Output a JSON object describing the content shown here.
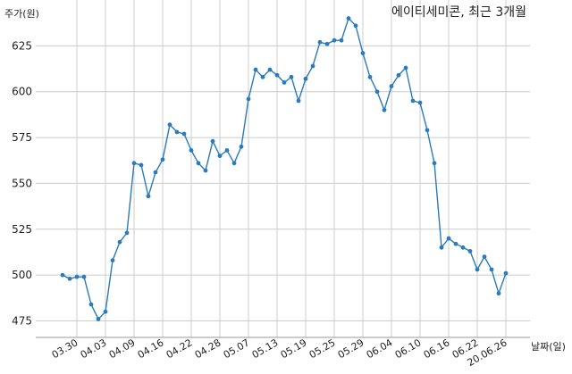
{
  "chart_data": {
    "type": "line",
    "title": "에이티세미콘, 최근 3개월",
    "ylabel": "주가(원)",
    "xlabel": "날짜(일)",
    "ylim": [
      466,
      650
    ],
    "yticks": [
      475,
      500,
      525,
      550,
      575,
      600,
      625
    ],
    "x_tick_labels": [
      "03.30",
      "04.03",
      "04.09",
      "04.16",
      "04.22",
      "04.28",
      "05.07",
      "05.13",
      "05.19",
      "05.25",
      "05.29",
      "06.04",
      "06.10",
      "06.16",
      "06.22",
      "20.06.26"
    ],
    "x_tick_index": [
      2,
      6,
      10,
      14,
      18,
      22,
      26,
      30,
      34,
      38,
      42,
      46,
      50,
      54,
      58,
      62
    ],
    "grid": true,
    "line_color": "#2b7bb9",
    "series": [
      {
        "values": [
          500,
          498,
          499,
          499,
          484,
          476,
          480,
          508,
          518,
          523,
          561,
          560,
          543,
          556,
          563,
          582,
          578,
          577,
          568,
          561,
          557,
          573,
          565,
          568,
          561,
          570,
          596,
          612,
          608,
          612,
          609,
          605,
          608,
          595,
          607,
          614,
          627,
          626,
          628,
          628,
          640,
          636,
          621,
          608,
          600,
          590,
          603,
          609,
          613,
          595,
          594,
          579,
          561,
          515,
          520,
          517,
          515,
          513,
          503,
          510,
          503,
          490,
          501
        ]
      }
    ]
  }
}
